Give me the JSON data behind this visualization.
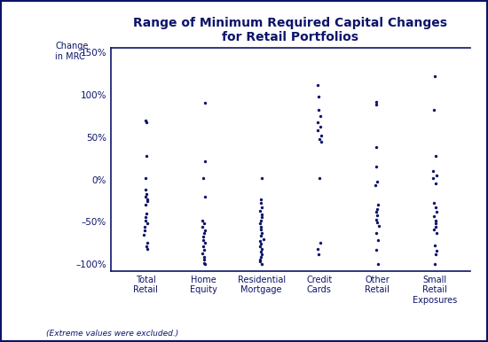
{
  "title": "Range of Minimum Required Capital Changes\nfor Retail Portfolios",
  "ylabel": "Change\nin MRC",
  "footnote": "(Extreme values were excluded.)",
  "categories": [
    "Total\nRetail",
    "Home\nEquity",
    "Residential\nMortgage",
    "Credit\nCards",
    "Other\nRetail",
    "Small\nRetail\nExposures"
  ],
  "category_keys": [
    "Total Retail",
    "Home Equity",
    "Residential Mortgage",
    "Credit Cards",
    "Other Retail",
    "Small Retail Exposures"
  ],
  "dot_color": "#0d1469",
  "background_color": "#ffffff",
  "border_color": "#0d1469",
  "ylim": [
    -1.08,
    1.55
  ],
  "yticks": [
    -1.0,
    -0.5,
    0.0,
    0.5,
    1.0,
    1.5
  ],
  "ytick_labels": [
    "–100%",
    "–50%",
    "0%",
    "50%",
    "100%",
    "150%"
  ],
  "data": {
    "Total Retail": [
      0.7,
      0.68,
      0.28,
      0.02,
      -0.12,
      -0.17,
      -0.2,
      -0.23,
      -0.26,
      -0.3,
      -0.4,
      -0.44,
      -0.48,
      -0.52,
      -0.56,
      -0.6,
      -0.65,
      -0.75,
      -0.79,
      -0.82
    ],
    "Home Equity": [
      0.91,
      0.22,
      0.02,
      -0.2,
      -0.48,
      -0.52,
      -0.56,
      -0.6,
      -0.63,
      -0.67,
      -0.72,
      -0.75,
      -0.79,
      -0.83,
      -0.87,
      -0.91,
      -0.95,
      -0.99,
      -1.0
    ],
    "Residential Mortgage": [
      0.02,
      -0.23,
      -0.28,
      -0.33,
      -0.37,
      -0.41,
      -0.44,
      -0.48,
      -0.52,
      -0.56,
      -0.59,
      -0.63,
      -0.66,
      -0.7,
      -0.73,
      -0.76,
      -0.79,
      -0.82,
      -0.85,
      -0.88,
      -0.91,
      -0.94,
      -0.97,
      -1.0
    ],
    "Credit Cards": [
      1.12,
      0.98,
      0.82,
      0.75,
      0.68,
      0.62,
      0.58,
      0.52,
      0.48,
      0.45,
      0.02,
      -0.75,
      -0.82,
      -0.88
    ],
    "Other Retail": [
      0.92,
      0.88,
      0.38,
      0.15,
      -0.02,
      -0.07,
      -0.3,
      -0.35,
      -0.38,
      -0.42,
      -0.47,
      -0.51,
      -0.55,
      -0.63,
      -0.72,
      -0.83,
      -1.0
    ],
    "Small Retail Exposures": [
      1.22,
      0.82,
      0.28,
      0.1,
      0.05,
      0.02,
      -0.05,
      -0.28,
      -0.33,
      -0.38,
      -0.43,
      -0.48,
      -0.52,
      -0.56,
      -0.59,
      -0.63,
      -0.78,
      -0.84,
      -0.88,
      -1.0
    ]
  }
}
